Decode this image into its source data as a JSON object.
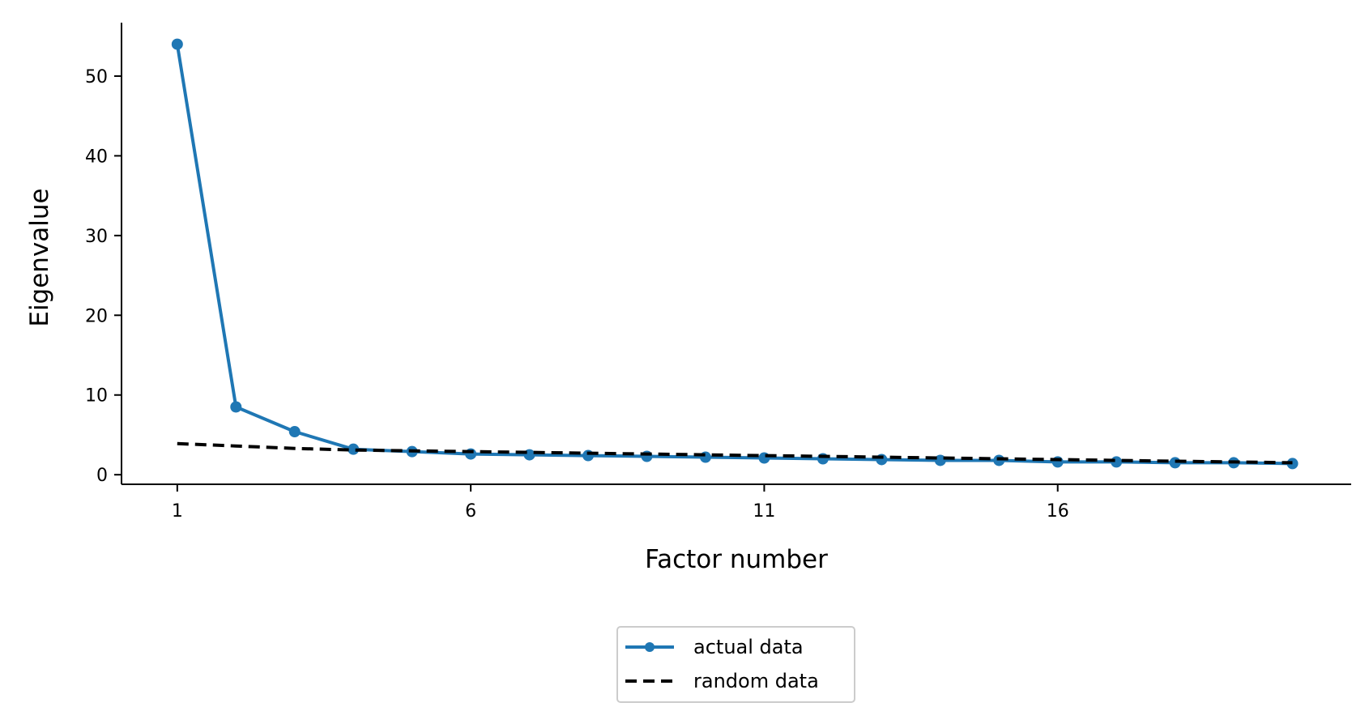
{
  "chart_data": {
    "type": "line",
    "xlabel": "Factor number",
    "ylabel": "Eigenvalue",
    "x": [
      1,
      2,
      3,
      4,
      5,
      6,
      7,
      8,
      9,
      10,
      11,
      12,
      13,
      14,
      15,
      16,
      17,
      18,
      19,
      20
    ],
    "xticks": [
      1,
      6,
      11,
      16
    ],
    "yticks": [
      0,
      10,
      20,
      30,
      40,
      50
    ],
    "xlim": [
      0.05,
      21
    ],
    "ylim": [
      -1.2,
      56.7
    ],
    "grid": false,
    "legend_position": "bottom-center",
    "series": [
      {
        "name": "actual data",
        "values": [
          54.0,
          8.5,
          5.4,
          3.2,
          2.9,
          2.6,
          2.5,
          2.4,
          2.3,
          2.2,
          2.1,
          2.0,
          1.9,
          1.8,
          1.8,
          1.6,
          1.6,
          1.5,
          1.5,
          1.4
        ],
        "color": "#1f77b4",
        "style": "solid",
        "marker": "circle"
      },
      {
        "name": "random data",
        "values": [
          3.9,
          3.6,
          3.3,
          3.1,
          3.0,
          2.9,
          2.8,
          2.7,
          2.6,
          2.5,
          2.4,
          2.3,
          2.2,
          2.1,
          2.0,
          1.9,
          1.8,
          1.7,
          1.6,
          1.5
        ],
        "color": "#000000",
        "style": "dashed",
        "marker": "none"
      }
    ]
  }
}
